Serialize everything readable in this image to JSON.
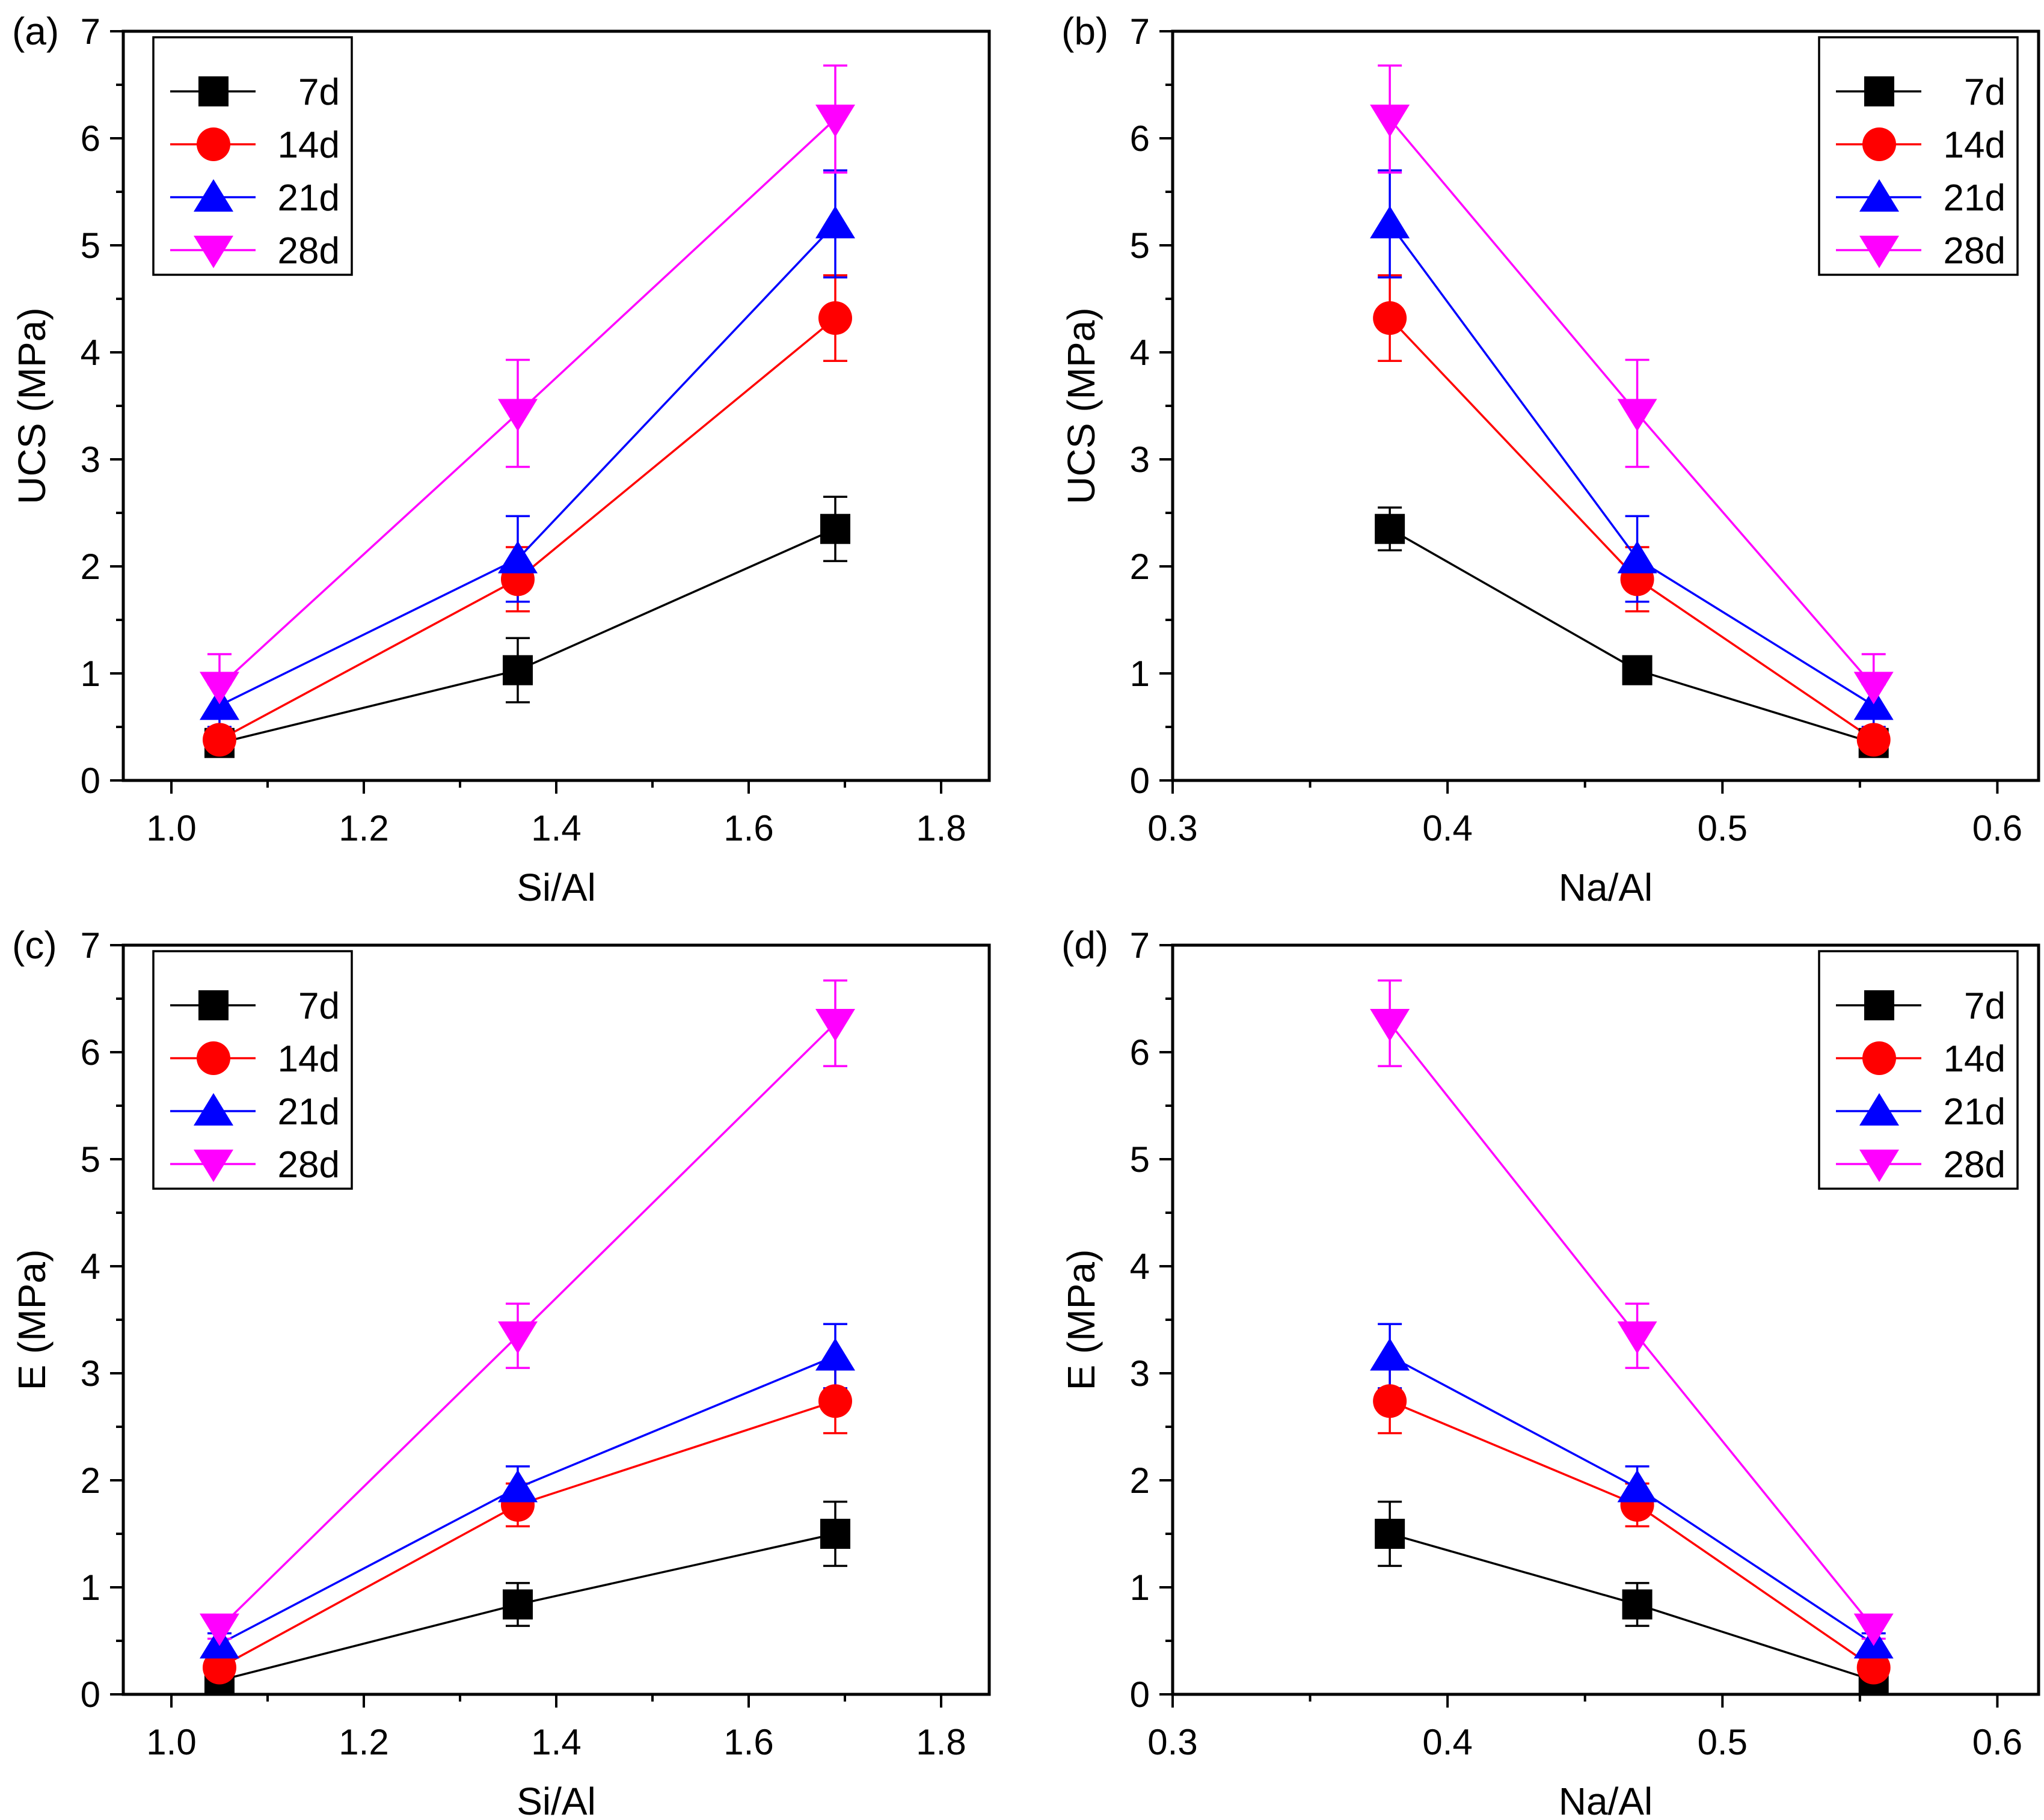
{
  "chart_data": [
    {
      "type": "line",
      "panel_label": "(a)",
      "xlabel": "Si/Al",
      "ylabel": "UCS (MPa)",
      "xlim": [
        0.95,
        1.85
      ],
      "ylim": [
        0,
        7
      ],
      "xticks": [
        "1.0",
        "1.2",
        "1.4",
        "1.6",
        "1.8"
      ],
      "yticks": [
        "0",
        "1",
        "2",
        "3",
        "4",
        "5",
        "6",
        "7"
      ],
      "legend_position": "top-left",
      "x": [
        1.05,
        1.36,
        1.69
      ],
      "series": [
        {
          "name": "7d",
          "color": "#000000",
          "marker": "square",
          "values": [
            0.35,
            1.03,
            2.35
          ],
          "errors": [
            0.1,
            0.3,
            0.3
          ]
        },
        {
          "name": "14d",
          "color": "#ff0000",
          "marker": "circle",
          "values": [
            0.38,
            1.88,
            4.32
          ],
          "errors": [
            0.1,
            0.3,
            0.4
          ]
        },
        {
          "name": "21d",
          "color": "#0000ff",
          "marker": "triangle-up",
          "values": [
            0.7,
            2.07,
            5.2
          ],
          "errors": [
            0.2,
            0.4,
            0.5
          ]
        },
        {
          "name": "28d",
          "color": "#ff00ff",
          "marker": "triangle-down",
          "values": [
            0.88,
            3.43,
            6.18
          ],
          "errors": [
            0.3,
            0.5,
            0.5
          ]
        }
      ]
    },
    {
      "type": "line",
      "panel_label": "(b)",
      "xlabel": "Na/Al",
      "ylabel": "UCS (MPa)",
      "xlim": [
        0.3,
        0.615
      ],
      "ylim": [
        0,
        7
      ],
      "xticks": [
        "0.3",
        "0.4",
        "0.5",
        "0.6"
      ],
      "yticks": [
        "0",
        "1",
        "2",
        "3",
        "4",
        "5",
        "6",
        "7"
      ],
      "legend_position": "top-right",
      "x": [
        0.379,
        0.469,
        0.555
      ],
      "series": [
        {
          "name": "7d",
          "color": "#000000",
          "marker": "square",
          "values": [
            2.35,
            1.03,
            0.35
          ],
          "errors": [
            0.2,
            0.05,
            0.1
          ]
        },
        {
          "name": "14d",
          "color": "#ff0000",
          "marker": "circle",
          "values": [
            4.32,
            1.88,
            0.38
          ],
          "errors": [
            0.4,
            0.3,
            0.1
          ]
        },
        {
          "name": "21d",
          "color": "#0000ff",
          "marker": "triangle-up",
          "values": [
            5.2,
            2.07,
            0.7
          ],
          "errors": [
            0.5,
            0.4,
            0.2
          ]
        },
        {
          "name": "28d",
          "color": "#ff00ff",
          "marker": "triangle-down",
          "values": [
            6.18,
            3.43,
            0.88
          ],
          "errors": [
            0.5,
            0.5,
            0.3
          ]
        }
      ]
    },
    {
      "type": "line",
      "panel_label": "(c)",
      "xlabel": "Si/Al",
      "ylabel": "E (MPa)",
      "xlim": [
        0.95,
        1.85
      ],
      "ylim": [
        0,
        7
      ],
      "xticks": [
        "1.0",
        "1.2",
        "1.4",
        "1.6",
        "1.8"
      ],
      "yticks": [
        "0",
        "1",
        "2",
        "3",
        "4",
        "5",
        "6",
        "7"
      ],
      "legend_position": "top-left",
      "x": [
        1.05,
        1.36,
        1.69
      ],
      "series": [
        {
          "name": "7d",
          "color": "#000000",
          "marker": "square",
          "values": [
            0.13,
            0.84,
            1.5
          ],
          "errors": [
            0.05,
            0.2,
            0.3
          ]
        },
        {
          "name": "14d",
          "color": "#ff0000",
          "marker": "circle",
          "values": [
            0.25,
            1.77,
            2.74
          ],
          "errors": [
            0.05,
            0.2,
            0.3
          ]
        },
        {
          "name": "21d",
          "color": "#0000ff",
          "marker": "triangle-up",
          "values": [
            0.47,
            1.93,
            3.16
          ],
          "errors": [
            0.1,
            0.2,
            0.3
          ]
        },
        {
          "name": "28d",
          "color": "#ff00ff",
          "marker": "triangle-down",
          "values": [
            0.62,
            3.35,
            6.27
          ],
          "errors": [
            0.1,
            0.3,
            0.4
          ]
        }
      ]
    },
    {
      "type": "line",
      "panel_label": "(d)",
      "xlabel": "Na/Al",
      "ylabel": "E (MPa)",
      "xlim": [
        0.3,
        0.615
      ],
      "ylim": [
        0,
        7
      ],
      "xticks": [
        "0.3",
        "0.4",
        "0.5",
        "0.6"
      ],
      "yticks": [
        "0",
        "1",
        "2",
        "3",
        "4",
        "5",
        "6",
        "7"
      ],
      "legend_position": "top-right",
      "x": [
        0.379,
        0.469,
        0.555
      ],
      "series": [
        {
          "name": "7d",
          "color": "#000000",
          "marker": "square",
          "values": [
            1.5,
            0.84,
            0.13
          ],
          "errors": [
            0.3,
            0.2,
            0.05
          ]
        },
        {
          "name": "14d",
          "color": "#ff0000",
          "marker": "circle",
          "values": [
            2.74,
            1.77,
            0.25
          ],
          "errors": [
            0.3,
            0.2,
            0.05
          ]
        },
        {
          "name": "21d",
          "color": "#0000ff",
          "marker": "triangle-up",
          "values": [
            3.16,
            1.93,
            0.47
          ],
          "errors": [
            0.3,
            0.2,
            0.1
          ]
        },
        {
          "name": "28d",
          "color": "#ff00ff",
          "marker": "triangle-down",
          "values": [
            6.27,
            3.35,
            0.62
          ],
          "errors": [
            0.4,
            0.3,
            0.1
          ]
        }
      ]
    }
  ]
}
